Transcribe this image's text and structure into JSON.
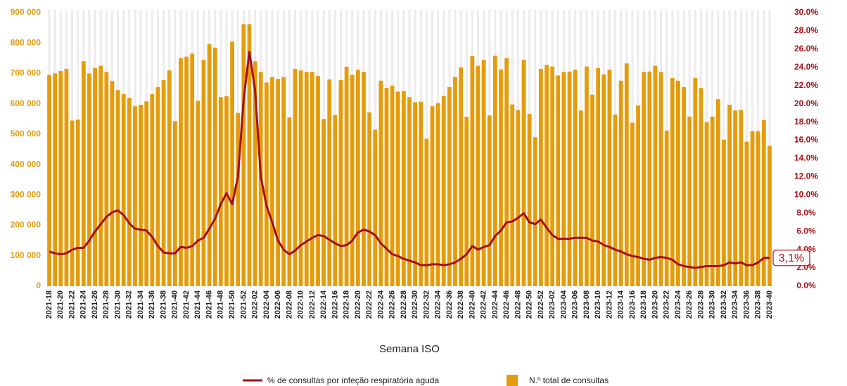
{
  "chart_data": {
    "type": "bar-line",
    "x_label": "Semana ISO",
    "categories": [
      "2021-18",
      null,
      "2021-20",
      null,
      "2021-22",
      null,
      "2021-24",
      null,
      "2021-26",
      null,
      "2021-28",
      null,
      "2021-30",
      null,
      "2021-32",
      null,
      "2021-34",
      null,
      "2021-36",
      null,
      "2021-38",
      null,
      "2021-40",
      null,
      "2021-42",
      null,
      "2021-44",
      null,
      "2021-46",
      null,
      "2021-48",
      null,
      "2021-50",
      null,
      "2021-52",
      null,
      "2022-02",
      null,
      "2022-04",
      null,
      "2022-06",
      null,
      "2022-08",
      null,
      "2022-10",
      null,
      "2022-12",
      null,
      "2022-14",
      null,
      "2022-16",
      null,
      "2022-18",
      null,
      "2022-20",
      null,
      "2022-22",
      null,
      "2022-24",
      null,
      "2022-26",
      null,
      "2022-28",
      null,
      "2022-30",
      null,
      "2022-32",
      null,
      "2022-34",
      null,
      "2022-36",
      null,
      "2022-38",
      null,
      "2022-40",
      null,
      "2022-42",
      null,
      "2022-44",
      null,
      "2022-46",
      null,
      "2022-48",
      null,
      "2022-50",
      null,
      "2022-52",
      null,
      "2023-02",
      null,
      "2023-04",
      null,
      "2023-06",
      null,
      "2023-08",
      null,
      "2023-10",
      null,
      "2023-12",
      null,
      "2023-14",
      null,
      "2023-16",
      null,
      "2023-18",
      null,
      "2023-20",
      null,
      "2023-22",
      null,
      "2023-24",
      null,
      "2023-26",
      null,
      "2023-28",
      null,
      "2023-30",
      null,
      "2023-32",
      null,
      "2023-34",
      null,
      "2023-36",
      null,
      "2023-38",
      null,
      "2023-40"
    ],
    "series": [
      {
        "name": "% de consultas por infeção respiratória aguda",
        "color": "#a50f15",
        "axis": "y2",
        "kind": "line",
        "values": [
          3.8,
          3.6,
          3.5,
          3.6,
          4.0,
          4.2,
          4.2,
          5.0,
          6.0,
          6.8,
          7.6,
          8.1,
          8.3,
          7.8,
          6.9,
          6.3,
          6.2,
          6.1,
          5.4,
          4.4,
          3.7,
          3.6,
          3.6,
          4.3,
          4.2,
          4.4,
          5.0,
          5.3,
          6.3,
          7.4,
          9.0,
          10.2,
          9.0,
          12.0,
          20.5,
          25.7,
          21.5,
          12.0,
          8.8,
          7.0,
          5.0,
          4.0,
          3.5,
          3.9,
          4.5,
          4.9,
          5.3,
          5.6,
          5.5,
          5.1,
          4.7,
          4.4,
          4.5,
          5.0,
          5.9,
          6.2,
          6.0,
          5.6,
          4.7,
          4.1,
          3.5,
          3.3,
          3.0,
          2.8,
          2.6,
          2.3,
          2.3,
          2.4,
          2.4,
          2.3,
          2.4,
          2.6,
          3.0,
          3.5,
          4.4,
          4.0,
          4.3,
          4.5,
          5.5,
          6.1,
          7.0,
          7.1,
          7.5,
          8.0,
          7.0,
          6.8,
          7.3,
          6.4,
          5.6,
          5.2,
          5.2,
          5.2,
          5.3,
          5.3,
          5.3,
          5.0,
          4.9,
          4.5,
          4.3,
          4.0,
          3.8,
          3.5,
          3.3,
          3.2,
          3.0,
          2.9,
          3.1,
          3.2,
          3.1,
          2.9,
          2.4,
          2.2,
          2.1,
          2.0,
          2.1,
          2.2,
          2.2,
          2.2,
          2.3,
          2.6,
          2.5,
          2.6,
          2.3,
          2.3,
          2.6,
          3.1,
          3.1
        ]
      },
      {
        "name": "N.º total de consultas",
        "color": "#e59c0c",
        "axis": "y",
        "kind": "bar",
        "values": [
          695000,
          700000,
          708000,
          715000,
          545000,
          548000,
          740000,
          700000,
          718000,
          725000,
          705000,
          675000,
          645000,
          632000,
          620000,
          592000,
          597000,
          608000,
          632000,
          655000,
          678000,
          710000,
          543000,
          750000,
          755000,
          765000,
          610000,
          745000,
          797000,
          785000,
          622000,
          625000,
          805000,
          570000,
          862000,
          862000,
          740000,
          705000,
          670000,
          688000,
          682000,
          688000,
          555000,
          715000,
          710000,
          705000,
          705000,
          692000,
          550000,
          680000,
          563000,
          678000,
          722000,
          695000,
          712000,
          705000,
          572000,
          515000,
          676000,
          652000,
          660000,
          640000,
          642000,
          622000,
          605000,
          607000,
          485000,
          592000,
          602000,
          626000,
          655000,
          688000,
          720000,
          557000,
          757000,
          725000,
          745000,
          562000,
          758000,
          713000,
          750000,
          598000,
          580000,
          745000,
          567000,
          490000,
          715000,
          728000,
          723000,
          693000,
          705000,
          706000,
          712000,
          578000,
          723000,
          630000,
          718000,
          697000,
          712000,
          565000,
          676000,
          733000,
          538000,
          595000,
          705000,
          706000,
          725000,
          705000,
          512000,
          685000,
          676000,
          655000,
          558000,
          685000,
          652000,
          540000,
          558000,
          615000,
          482000,
          597000,
          578000,
          580000,
          475000,
          510000,
          510000,
          547000,
          462000
        ]
      }
    ],
    "annotation": "3,1%",
    "ylim": [
      0,
      900000
    ],
    "yticks": [
      0,
      {
        "value": 100000,
        "label": "100 000"
      },
      {
        "value": 200000,
        "label": "200 000"
      },
      {
        "value": 300000,
        "label": "300 000"
      },
      {
        "value": 400000,
        "label": "400 000"
      },
      {
        "value": 500000,
        "label": "500 000"
      },
      {
        "value": 600000,
        "label": "600 000"
      },
      {
        "value": 700000,
        "label": "700 000"
      },
      {
        "value": 800000,
        "label": "800 000"
      },
      {
        "value": 900000,
        "label": "900 000"
      }
    ],
    "y2lim": [
      0,
      30
    ],
    "y2ticks": [
      {
        "value": 0,
        "label": "0.0%"
      },
      {
        "value": 2,
        "label": "2.0%"
      },
      {
        "value": 4,
        "label": "4.0%"
      },
      {
        "value": 6,
        "label": "6.0%"
      },
      {
        "value": 8,
        "label": "8.0%"
      },
      {
        "value": 10,
        "label": "10.0%"
      },
      {
        "value": 12,
        "label": "12.0%"
      },
      {
        "value": 14,
        "label": "14.0%"
      },
      {
        "value": 16,
        "label": "16.0%"
      },
      {
        "value": 18,
        "label": "18.0%"
      },
      {
        "value": 20,
        "label": "20.0%"
      },
      {
        "value": 22,
        "label": "22.0%"
      },
      {
        "value": 24,
        "label": "24.0%"
      },
      {
        "value": 26,
        "label": "26.0%"
      },
      {
        "value": 28,
        "label": "28.0%"
      },
      {
        "value": 30,
        "label": "30.0%"
      }
    ],
    "grid": true,
    "legend": "bottom"
  }
}
